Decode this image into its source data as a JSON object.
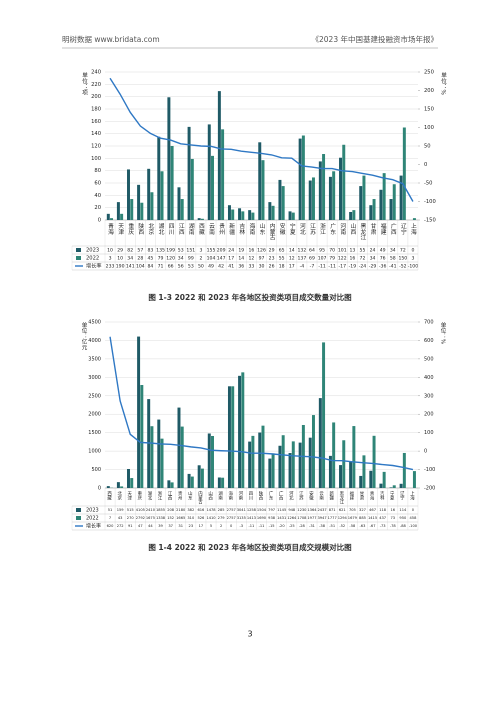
{
  "header": {
    "left": "明树数据 www.bridata.com",
    "right": "《2023 年中国基建投融资市场年报》"
  },
  "page_number": "3",
  "chart_data": [
    {
      "type": "bar",
      "title": "图 1-3 2022 和 2023 年各地区投资类项目成交数量对比图",
      "y_label": "单位：项",
      "y2_label": "单位：%",
      "categories": [
        "青海",
        "天津",
        "重庆",
        "陕西",
        "北京",
        "湖北",
        "四川",
        "江西",
        "湖南",
        "西藏",
        "云南",
        "贵州",
        "新疆",
        "吉林",
        "海南",
        "山东",
        "内蒙古",
        "安徽",
        "宁夏",
        "河北",
        "江苏",
        "浙江",
        "广东",
        "河南",
        "山西",
        "黑龙江",
        "甘肃",
        "福建",
        "广西",
        "辽宁",
        "上海"
      ],
      "series": [
        {
          "name": "2023",
          "color": "#1f5a66",
          "values": [
            10,
            29,
            82,
            57,
            83,
            135,
            199,
            53,
            151,
            3,
            155,
            209,
            24,
            19,
            16,
            126,
            29,
            65,
            14,
            132,
            64,
            95,
            70,
            101,
            13,
            55,
            24,
            49,
            34,
            72,
            0
          ]
        },
        {
          "name": "2022",
          "color": "#2f8577",
          "values": [
            3,
            10,
            34,
            28,
            45,
            79,
            120,
            34,
            99,
            2,
            104,
            147,
            17,
            14,
            12,
            97,
            23,
            55,
            12,
            137,
            69,
            107,
            79,
            122,
            16,
            72,
            34,
            76,
            58,
            150,
            3
          ]
        },
        {
          "name": "增长率",
          "color": "#2f78c4",
          "type": "line",
          "axis": "y2",
          "values": [
            233,
            190,
            141,
            104,
            84,
            71,
            66,
            56,
            53,
            50,
            49,
            42,
            41,
            36,
            33,
            30,
            26,
            18,
            17,
            -4,
            -7,
            -11,
            -11,
            -17,
            -19,
            -24,
            -29,
            -36,
            -41,
            -52,
            -100
          ]
        }
      ],
      "ylim": [
        0,
        240
      ],
      "yticks": [
        0,
        20,
        40,
        60,
        80,
        100,
        120,
        140,
        160,
        180,
        200,
        220,
        240
      ],
      "y2lim": [
        -150,
        250
      ],
      "y2ticks": [
        -150,
        -100,
        -50,
        0,
        50,
        100,
        150,
        200,
        250
      ],
      "grid": true
    },
    {
      "type": "bar",
      "title": "图 1-4 2022 和 2023 年各地区投资类项目成交规模对比图",
      "y_label": "单位：亿元",
      "y2_label": "单位：%",
      "categories": [
        "西藏",
        "北京",
        "天津",
        "重庆",
        "湖北",
        "浙江",
        "江西",
        "贵州",
        "山东",
        "内蒙古",
        "山西",
        "湖南",
        "海南",
        "河南",
        "四川",
        "陕西",
        "广东",
        "广西",
        "河北",
        "江苏",
        "安徽",
        "云南",
        "新疆",
        "黑龙江",
        "福建",
        "甘肃",
        "青海",
        "吉林",
        "宁夏",
        "辽宁",
        "上海"
      ],
      "series": [
        {
          "name": "2023",
          "color": "#1f5a66",
          "values": [
            51,
            159,
            515,
            4105,
            2410,
            1855,
            208,
            2180,
            382,
            616,
            1478,
            285,
            2757,
            3041,
            1258,
            1504,
            797,
            1145,
            948,
            1230,
            1364,
            2437,
            871,
            621,
            705,
            327,
            467,
            118,
            16,
            114,
            0
          ]
        },
        {
          "name": "2022",
          "color": "#2f8577",
          "values": [
            7,
            43,
            270,
            2792,
            1675,
            1338,
            152,
            1665,
            310,
            526,
            1410,
            279,
            2757,
            3135,
            1413,
            1690,
            938,
            1431,
            1264,
            1708,
            1977,
            3947,
            1777,
            1294,
            1679,
            885,
            1415,
            437,
            73,
            950,
            458
          ]
        },
        {
          "name": "增长率",
          "color": "#2f78c4",
          "type": "line",
          "axis": "y2",
          "values": [
            620,
            272,
            91,
            47,
            44,
            39,
            37,
            31,
            23,
            17,
            5,
            2,
            0,
            -3,
            -11,
            -11,
            -15,
            -20,
            -25,
            -28,
            -31,
            -38,
            -51,
            -52,
            -58,
            -63,
            -67,
            -73,
            -78,
            -88,
            -100
          ]
        }
      ],
      "ylim": [
        0,
        4500
      ],
      "yticks": [
        0,
        500,
        1000,
        1500,
        2000,
        2500,
        3000,
        3500,
        4000,
        4500
      ],
      "y2lim": [
        -200,
        700
      ],
      "y2ticks": [
        -200,
        -100,
        0,
        100,
        200,
        300,
        400,
        500,
        600,
        700
      ],
      "grid": true
    }
  ]
}
